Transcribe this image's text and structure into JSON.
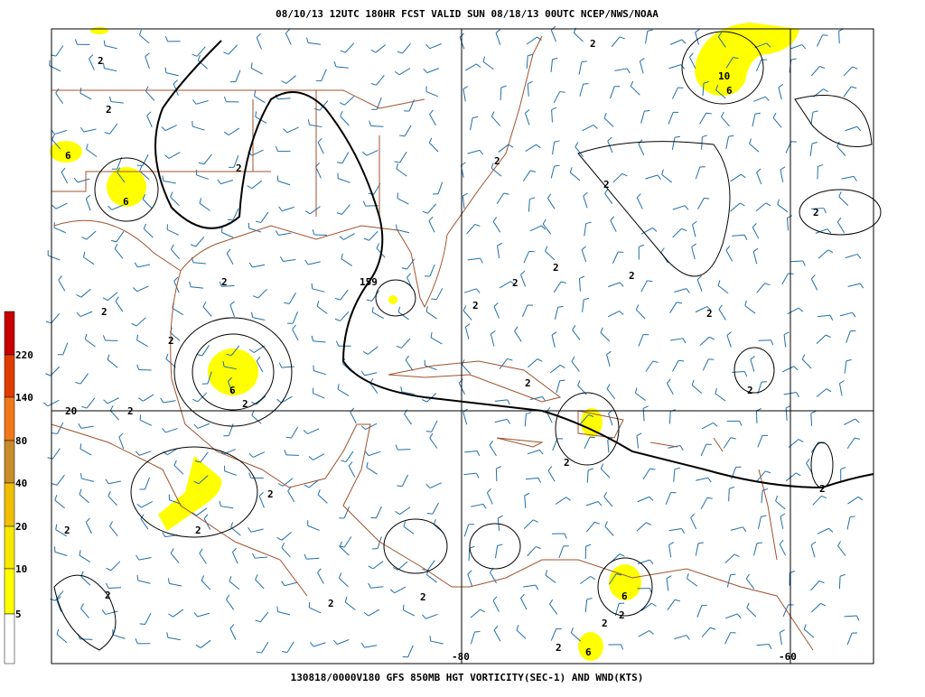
{
  "header": {
    "title": "08/10/13 12UTC  180HR  FCST VALID SUN 08/18/13 00UTC  NCEP/NWS/NOAA"
  },
  "footer": {
    "caption": "130818/0000V180 GFS 850MB HGT VORTICITY(SEC-1) AND WND(KTS)"
  },
  "colorbar": {
    "labels": [
      "220",
      "140",
      "80",
      "40",
      "20",
      "10",
      "5"
    ]
  },
  "grid_labels": [
    "20",
    "-80",
    "-60"
  ],
  "contour_labels": [
    "2",
    "2",
    "6",
    "6",
    "2",
    "2",
    "2",
    "2",
    "6",
    "2",
    "2",
    "159",
    "2",
    "2",
    "2",
    "2",
    "2",
    "2",
    "2",
    "2",
    "2",
    "10",
    "6",
    "2",
    "2",
    "2",
    "2",
    "2",
    "2",
    "2",
    "2",
    "6",
    "2",
    "2",
    "2",
    "6",
    "2",
    "2"
  ]
}
